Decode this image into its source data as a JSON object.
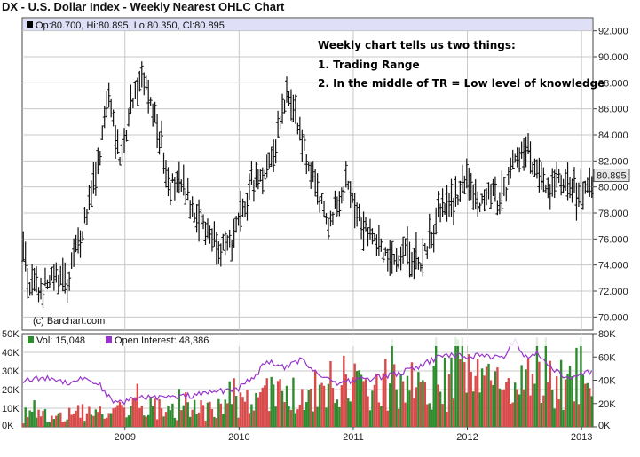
{
  "title": "DX - U.S. Dollar Index - Weekly Nearest OHLC Chart",
  "info_bar": "Op:80.700, Hi:80.895, Lo:80.350, Cl:80.895",
  "last_price_label": "80.895",
  "copyright": "(c) Barchart.com",
  "annotation": {
    "line1": "Weekly chart tells us two things:",
    "line2": "1. Trading Range",
    "line3": "2. In the middle of TR = Low level of knowledge"
  },
  "volume_legend": {
    "vol": "Vol: 15,048",
    "oi": "Open Interest: 48,386"
  },
  "colors": {
    "bars": "#111111",
    "grid": "#c8c8c8",
    "info_bg": "#dfe0f7",
    "vol_up": "#2e8b2e",
    "vol_down": "#d94a4a",
    "oi_line": "#9933cc",
    "price_box": "#e8e8e8"
  },
  "chart_data": [
    {
      "type": "ohlc",
      "title": "DX - U.S. Dollar Index - Weekly Nearest OHLC Chart",
      "ylim": [
        69,
        93
      ],
      "y_ticks": [
        "70.000",
        "72.000",
        "74.000",
        "76.000",
        "78.000",
        "80.000",
        "82.000",
        "84.000",
        "86.000",
        "88.000",
        "90.000",
        "92.000"
      ],
      "x_ticks": [
        "2009",
        "2010",
        "2011",
        "2012",
        "2013"
      ],
      "xlim": [
        2008.1,
        2013.1
      ],
      "grid": true,
      "anchors": [
        {
          "x": 2008.1,
          "y": 76.5
        },
        {
          "x": 2008.15,
          "y": 72.5
        },
        {
          "x": 2008.25,
          "y": 72.0
        },
        {
          "x": 2008.4,
          "y": 73.0
        },
        {
          "x": 2008.5,
          "y": 72.5
        },
        {
          "x": 2008.6,
          "y": 76.0
        },
        {
          "x": 2008.7,
          "y": 79.0
        },
        {
          "x": 2008.78,
          "y": 82.0
        },
        {
          "x": 2008.85,
          "y": 87.0
        },
        {
          "x": 2008.9,
          "y": 86.0
        },
        {
          "x": 2008.95,
          "y": 81.5
        },
        {
          "x": 2009.0,
          "y": 84.0
        },
        {
          "x": 2009.08,
          "y": 87.5
        },
        {
          "x": 2009.15,
          "y": 88.5
        },
        {
          "x": 2009.22,
          "y": 86.5
        },
        {
          "x": 2009.3,
          "y": 84.0
        },
        {
          "x": 2009.4,
          "y": 80.0
        },
        {
          "x": 2009.5,
          "y": 80.0
        },
        {
          "x": 2009.6,
          "y": 78.5
        },
        {
          "x": 2009.7,
          "y": 77.0
        },
        {
          "x": 2009.8,
          "y": 76.0
        },
        {
          "x": 2009.9,
          "y": 75.0
        },
        {
          "x": 2010.0,
          "y": 77.0
        },
        {
          "x": 2010.1,
          "y": 80.0
        },
        {
          "x": 2010.2,
          "y": 81.0
        },
        {
          "x": 2010.3,
          "y": 82.5
        },
        {
          "x": 2010.38,
          "y": 86.0
        },
        {
          "x": 2010.44,
          "y": 87.5
        },
        {
          "x": 2010.5,
          "y": 85.0
        },
        {
          "x": 2010.6,
          "y": 82.0
        },
        {
          "x": 2010.7,
          "y": 79.0
        },
        {
          "x": 2010.8,
          "y": 77.0
        },
        {
          "x": 2010.88,
          "y": 79.5
        },
        {
          "x": 2010.95,
          "y": 80.5
        },
        {
          "x": 2011.05,
          "y": 78.0
        },
        {
          "x": 2011.15,
          "y": 76.5
        },
        {
          "x": 2011.25,
          "y": 75.5
        },
        {
          "x": 2011.32,
          "y": 74.0
        },
        {
          "x": 2011.4,
          "y": 75.0
        },
        {
          "x": 2011.5,
          "y": 75.0
        },
        {
          "x": 2011.58,
          "y": 74.0
        },
        {
          "x": 2011.68,
          "y": 76.0
        },
        {
          "x": 2011.75,
          "y": 78.5
        },
        {
          "x": 2011.85,
          "y": 78.5
        },
        {
          "x": 2012.0,
          "y": 80.5
        },
        {
          "x": 2012.08,
          "y": 79.0
        },
        {
          "x": 2012.2,
          "y": 79.5
        },
        {
          "x": 2012.3,
          "y": 79.0
        },
        {
          "x": 2012.4,
          "y": 81.5
        },
        {
          "x": 2012.5,
          "y": 83.0
        },
        {
          "x": 2012.55,
          "y": 82.5
        },
        {
          "x": 2012.62,
          "y": 80.5
        },
        {
          "x": 2012.7,
          "y": 79.5
        },
        {
          "x": 2012.8,
          "y": 80.5
        },
        {
          "x": 2012.9,
          "y": 79.8
        },
        {
          "x": 2013.0,
          "y": 79.5
        },
        {
          "x": 2013.1,
          "y": 80.7
        }
      ]
    },
    {
      "type": "bar+line",
      "series": [
        {
          "name": "Vol: 15,048",
          "kind": "bar"
        },
        {
          "name": "Open Interest: 48,386",
          "kind": "line"
        }
      ],
      "ylim_left": [
        0,
        50000
      ],
      "ylim_right": [
        0,
        80000
      ],
      "y_ticks_left": [
        "0K",
        "10K",
        "20K",
        "30K",
        "40K",
        "50K"
      ],
      "y_ticks_right": [
        "0K",
        "20K",
        "40K",
        "60K",
        "80K"
      ],
      "volume_level": [
        {
          "x": 2008.1,
          "y": 6000
        },
        {
          "x": 2008.6,
          "y": 9000
        },
        {
          "x": 2009.0,
          "y": 12000
        },
        {
          "x": 2009.8,
          "y": 11000
        },
        {
          "x": 2010.3,
          "y": 20000
        },
        {
          "x": 2010.7,
          "y": 18000
        },
        {
          "x": 2011.2,
          "y": 28000
        },
        {
          "x": 2011.7,
          "y": 26000
        },
        {
          "x": 2012.2,
          "y": 30000
        },
        {
          "x": 2012.6,
          "y": 28000
        },
        {
          "x": 2013.1,
          "y": 25000
        }
      ],
      "open_interest": [
        {
          "x": 2008.1,
          "y": 40000
        },
        {
          "x": 2008.35,
          "y": 42000
        },
        {
          "x": 2008.5,
          "y": 38000
        },
        {
          "x": 2008.65,
          "y": 42000
        },
        {
          "x": 2008.78,
          "y": 36000
        },
        {
          "x": 2008.9,
          "y": 20000
        },
        {
          "x": 2009.0,
          "y": 22000
        },
        {
          "x": 2009.2,
          "y": 26000
        },
        {
          "x": 2009.4,
          "y": 25000
        },
        {
          "x": 2009.6,
          "y": 27000
        },
        {
          "x": 2009.8,
          "y": 30000
        },
        {
          "x": 2010.0,
          "y": 33000
        },
        {
          "x": 2010.15,
          "y": 45000
        },
        {
          "x": 2010.25,
          "y": 57000
        },
        {
          "x": 2010.4,
          "y": 50000
        },
        {
          "x": 2010.55,
          "y": 58000
        },
        {
          "x": 2010.7,
          "y": 45000
        },
        {
          "x": 2010.85,
          "y": 38000
        },
        {
          "x": 2011.0,
          "y": 40000
        },
        {
          "x": 2011.2,
          "y": 42000
        },
        {
          "x": 2011.4,
          "y": 46000
        },
        {
          "x": 2011.55,
          "y": 50000
        },
        {
          "x": 2011.7,
          "y": 58000
        },
        {
          "x": 2011.85,
          "y": 62000
        },
        {
          "x": 2012.0,
          "y": 60000
        },
        {
          "x": 2012.15,
          "y": 62000
        },
        {
          "x": 2012.3,
          "y": 58000
        },
        {
          "x": 2012.42,
          "y": 75000
        },
        {
          "x": 2012.5,
          "y": 60000
        },
        {
          "x": 2012.6,
          "y": 64000
        },
        {
          "x": 2012.75,
          "y": 50000
        },
        {
          "x": 2012.9,
          "y": 40000
        },
        {
          "x": 2013.0,
          "y": 45000
        },
        {
          "x": 2013.1,
          "y": 48386
        }
      ]
    }
  ]
}
